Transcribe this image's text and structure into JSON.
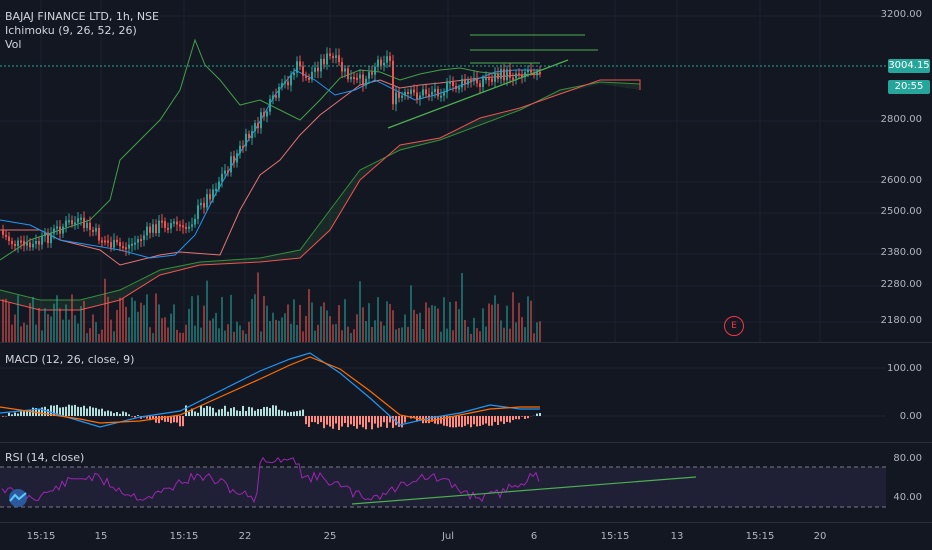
{
  "legend": {
    "symbol_line": "BAJAJ FINANCE LTD, 1h, NSE",
    "ichimoku": "Ichimoku (9, 26, 52, 26)",
    "vol": "Vol",
    "macd": "MACD (12, 26, close, 9)",
    "rsi": "RSI (14, close)"
  },
  "price_axis": [
    "3200.00",
    "2800.00",
    "2600.00",
    "2500.00",
    "2380.00",
    "2280.00",
    "2180.00"
  ],
  "current_price": "3004.15",
  "countdown": "20:55",
  "macd_axis": [
    "100.00",
    "0.00"
  ],
  "rsi_axis": [
    "80.00",
    "40.00"
  ],
  "time_axis": [
    "15:15",
    "15",
    "15:15",
    "22",
    "25",
    "Jul",
    "6",
    "15:15",
    "13",
    "15:15",
    "20"
  ],
  "earnings_marker": "E",
  "colors": {
    "background": "#131722",
    "up": "#26a69a",
    "down": "#ef5350",
    "trendline": "#4caf50",
    "macd_line": "#2196f3",
    "signal_line": "#ff6d00",
    "rsi_line": "#9c27b0",
    "price_tag": "#26a69a",
    "countdown_tag": "#26a69a"
  }
}
